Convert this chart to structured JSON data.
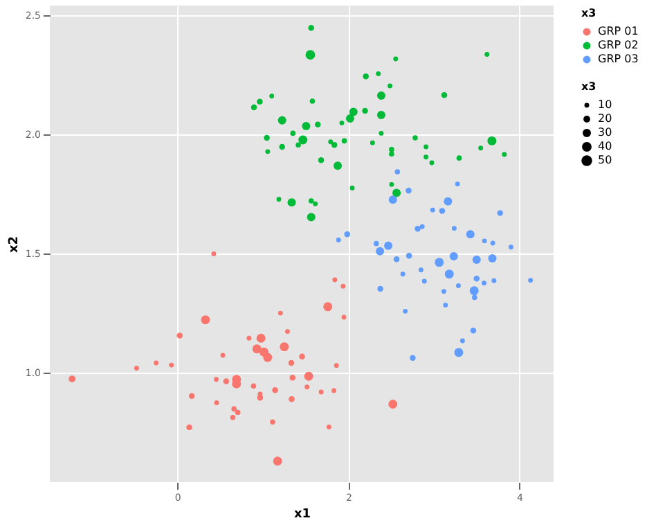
{
  "chart_data": {
    "type": "bubble",
    "xlabel": "x1",
    "ylabel": "x2",
    "legend_title": "x3",
    "legend": "right",
    "grid": true,
    "xlim": [
      -1.49,
      4.4
    ],
    "xticks": [
      0,
      2,
      4
    ],
    "ylim": [
      0.54,
      2.54
    ],
    "yticks": [
      {
        "value": 1,
        "label": "1.0"
      },
      {
        "value": 1.5,
        "label": "1.5"
      },
      {
        "value": 2,
        "label": "2.0"
      },
      {
        "value": 2.5,
        "label": "2.5"
      }
    ],
    "size_legend": [
      10,
      20,
      30,
      40,
      50
    ],
    "series": [
      {
        "name": "GRP 01",
        "color": "#f8766d",
        "x": [
          -1.23,
          -0.475,
          -0.247,
          -0.068,
          0.029,
          0.17,
          0.141,
          0.33,
          0.427,
          0.533,
          0.456,
          0.46,
          0.572,
          0.693,
          0.693,
          0.664,
          0.708,
          0.65,
          0.839,
          0.979,
          0.931,
          1.013,
          1.057,
          0.892,
          0.969,
          0.969,
          1.115,
          1.144,
          1.173,
          1.207,
          1.251,
          1.289,
          1.333,
          1.348,
          1.338,
          1.459,
          1.517,
          1.537,
          1.682,
          1.76,
          1.774,
          1.832,
          1.861,
          1.842,
          1.939,
          1.949,
          2.521
        ],
        "values": [
          0.973,
          1.018,
          1.04,
          1.031,
          1.155,
          0.901,
          0.77,
          1.221,
          1.498,
          1.072,
          0.971,
          0.873,
          0.963,
          0.971,
          0.952,
          0.847,
          0.832,
          0.811,
          1.144,
          1.144,
          1.099,
          1.086,
          1.063,
          0.943,
          0.894,
          0.909,
          0.792,
          0.926,
          0.628,
          1.249,
          1.108,
          1.172,
          1.04,
          0.978,
          0.888,
          1.067,
          0.939,
          0.984,
          0.918,
          1.276,
          0.771,
          0.924,
          1.029,
          1.389,
          1.362,
          1.232,
          0.867
        ],
        "sizes": [
          20,
          10,
          10,
          10,
          15,
          15,
          15,
          35,
          10,
          10,
          10,
          10,
          15,
          35,
          35,
          12,
          12,
          12,
          10,
          35,
          35,
          35,
          35,
          12,
          15,
          10,
          12,
          15,
          35,
          10,
          35,
          10,
          15,
          15,
          15,
          15,
          10,
          35,
          10,
          35,
          10,
          10,
          10,
          10,
          10,
          10,
          35
        ]
      },
      {
        "name": "GRP 02",
        "color": "#00ba38",
        "x": [
          1.566,
          1.556,
          1.105,
          0.897,
          0.965,
          1.58,
          1.226,
          1.507,
          1.643,
          1.352,
          1.047,
          1.469,
          1.415,
          1.226,
          1.057,
          1.793,
          1.837,
          1.953,
          1.682,
          1.876,
          1.924,
          2.021,
          2.06,
          2.196,
          2.205,
          2.351,
          2.487,
          2.385,
          2.385,
          2.385,
          2.283,
          2.506,
          2.506,
          2.506,
          2.564,
          2.554,
          2.782,
          3.122,
          2.908,
          2.908,
          2.976,
          3.296,
          3.548,
          3.679,
          3.621,
          3.824,
          2.046,
          1.188,
          1.338,
          1.566,
          1.614,
          1.566
        ],
        "values": [
          2.446,
          2.333,
          2.16,
          2.113,
          2.137,
          2.139,
          2.058,
          2.034,
          2.041,
          2.004,
          1.985,
          1.976,
          1.955,
          1.947,
          1.927,
          1.968,
          1.955,
          1.972,
          1.891,
          1.868,
          2.047,
          2.066,
          2.094,
          2.098,
          2.243,
          2.254,
          2.203,
          2.162,
          2.081,
          2.004,
          1.964,
          1.936,
          1.917,
          1.789,
          1.754,
          2.316,
          1.985,
          2.164,
          1.947,
          1.904,
          1.88,
          1.9,
          1.942,
          1.972,
          2.335,
          1.915,
          1.774,
          1.727,
          1.714,
          1.72,
          1.708,
          1.652
        ],
        "sizes": [
          15,
          40,
          10,
          15,
          15,
          12,
          30,
          30,
          15,
          12,
          15,
          35,
          12,
          15,
          10,
          10,
          15,
          12,
          15,
          30,
          10,
          30,
          30,
          15,
          15,
          10,
          10,
          30,
          30,
          10,
          10,
          12,
          12,
          10,
          30,
          10,
          12,
          15,
          10,
          10,
          10,
          12,
          10,
          35,
          10,
          10,
          10,
          10,
          30,
          12,
          10,
          30
        ]
      },
      {
        "name": "GRP 03",
        "color": "#619cff",
        "x": [
          2.574,
          2.705,
          2.521,
          3.277,
          3.165,
          3.097,
          2.986,
          3.775,
          2.811,
          2.864,
          3.238,
          3.427,
          3.592,
          3.689,
          1.987,
          1.886,
          2.327,
          2.467,
          2.37,
          2.71,
          2.564,
          3.233,
          3.063,
          3.5,
          3.684,
          3.902,
          2.85,
          3.18,
          2.637,
          2.889,
          3.5,
          3.587,
          3.703,
          4.13,
          3.287,
          3.117,
          2.375,
          3.471,
          3.476,
          2.666,
          3.136,
          3.461,
          3.335,
          3.291,
          2.753
        ],
        "values": [
          1.842,
          1.763,
          1.725,
          1.791,
          1.718,
          1.678,
          1.682,
          1.669,
          1.603,
          1.612,
          1.605,
          1.58,
          1.552,
          1.543,
          1.58,
          1.556,
          1.541,
          1.532,
          1.509,
          1.49,
          1.475,
          1.488,
          1.462,
          1.473,
          1.479,
          1.526,
          1.43,
          1.413,
          1.413,
          1.383,
          1.394,
          1.375,
          1.385,
          1.387,
          1.364,
          1.34,
          1.351,
          1.343,
          1.315,
          1.257,
          1.283,
          1.176,
          1.133,
          1.084,
          1.061
        ],
        "sizes": [
          12,
          15,
          30,
          10,
          30,
          15,
          10,
          15,
          15,
          10,
          10,
          30,
          10,
          10,
          15,
          10,
          12,
          30,
          30,
          15,
          15,
          30,
          35,
          30,
          30,
          10,
          10,
          35,
          10,
          10,
          15,
          10,
          10,
          10,
          10,
          10,
          15,
          35,
          12,
          10,
          10,
          15,
          10,
          35,
          15
        ]
      }
    ]
  }
}
